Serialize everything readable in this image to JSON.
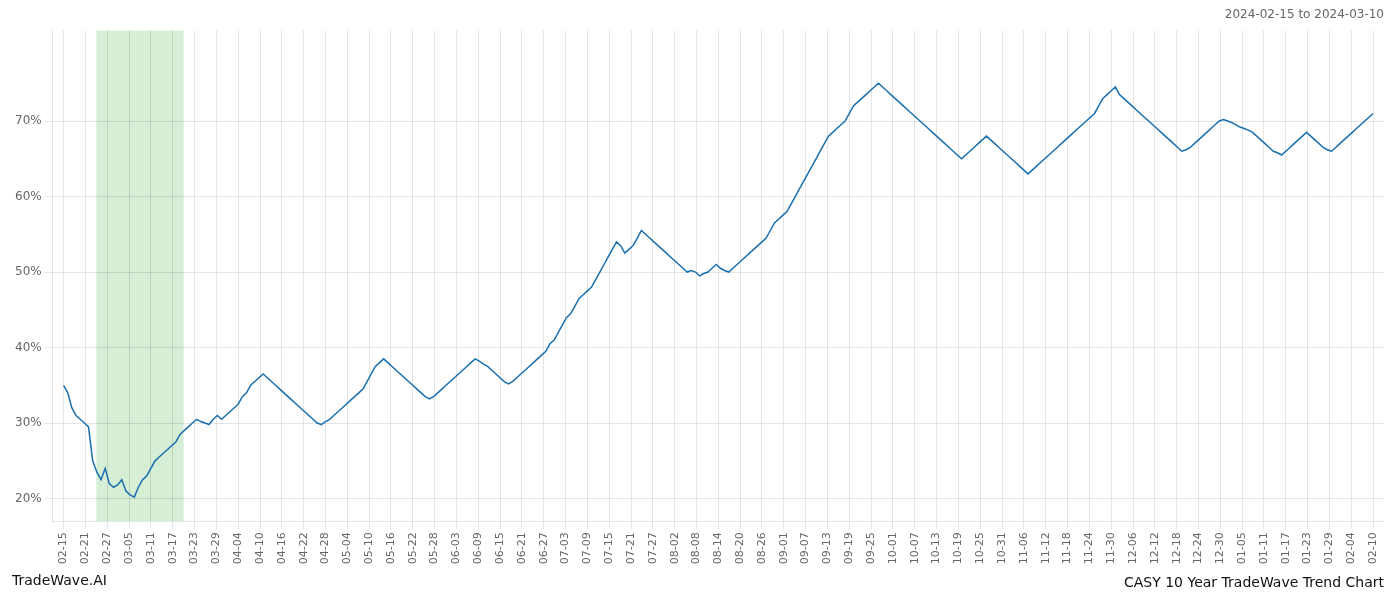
{
  "chart_data": {
    "type": "line",
    "title": "CASY 10 Year TradeWave Trend Chart",
    "subtitle": "2024-02-15 to 2024-03-10",
    "annotations": [
      "TradeWave.AI"
    ],
    "color": "#1a6faf",
    "grid": true,
    "highlight": {
      "xmin": 1.5,
      "xmax": 5.5,
      "color": "#d6eed6"
    },
    "xlim": [
      -0.5,
      60.5
    ],
    "xticks": [
      {
        "value": 0,
        "label": "02-15"
      },
      {
        "value": 1,
        "label": "02-21"
      },
      {
        "value": 2,
        "label": "02-27"
      },
      {
        "value": 3,
        "label": "03-05"
      },
      {
        "value": 4,
        "label": "03-11"
      },
      {
        "value": 5,
        "label": "03-17"
      },
      {
        "value": 6,
        "label": "03-23"
      },
      {
        "value": 7,
        "label": "03-29"
      },
      {
        "value": 8,
        "label": "04-04"
      },
      {
        "value": 9,
        "label": "04-10"
      },
      {
        "value": 10,
        "label": "04-16"
      },
      {
        "value": 11,
        "label": "04-22"
      },
      {
        "value": 12,
        "label": "04-28"
      },
      {
        "value": 13,
        "label": "05-04"
      },
      {
        "value": 14,
        "label": "05-10"
      },
      {
        "value": 15,
        "label": "05-16"
      },
      {
        "value": 16,
        "label": "05-22"
      },
      {
        "value": 17,
        "label": "05-28"
      },
      {
        "value": 18,
        "label": "06-03"
      },
      {
        "value": 19,
        "label": "06-09"
      },
      {
        "value": 20,
        "label": "06-15"
      },
      {
        "value": 21,
        "label": "06-21"
      },
      {
        "value": 22,
        "label": "06-27"
      },
      {
        "value": 23,
        "label": "07-03"
      },
      {
        "value": 24,
        "label": "07-09"
      },
      {
        "value": 25,
        "label": "07-15"
      },
      {
        "value": 26,
        "label": "07-21"
      },
      {
        "value": 27,
        "label": "07-27"
      },
      {
        "value": 28,
        "label": "08-02"
      },
      {
        "value": 29,
        "label": "08-08"
      },
      {
        "value": 30,
        "label": "08-14"
      },
      {
        "value": 31,
        "label": "08-20"
      },
      {
        "value": 32,
        "label": "08-26"
      },
      {
        "value": 33,
        "label": "09-01"
      },
      {
        "value": 34,
        "label": "09-07"
      },
      {
        "value": 35,
        "label": "09-13"
      },
      {
        "value": 36,
        "label": "09-19"
      },
      {
        "value": 37,
        "label": "09-25"
      },
      {
        "value": 38,
        "label": "10-01"
      },
      {
        "value": 39,
        "label": "10-07"
      },
      {
        "value": 40,
        "label": "10-13"
      },
      {
        "value": 41,
        "label": "10-19"
      },
      {
        "value": 42,
        "label": "10-25"
      },
      {
        "value": 43,
        "label": "10-31"
      },
      {
        "value": 44,
        "label": "11-06"
      },
      {
        "value": 45,
        "label": "11-12"
      },
      {
        "value": 46,
        "label": "11-18"
      },
      {
        "value": 47,
        "label": "11-24"
      },
      {
        "value": 48,
        "label": "11-30"
      },
      {
        "value": 49,
        "label": "12-06"
      },
      {
        "value": 50,
        "label": "12-12"
      },
      {
        "value": 51,
        "label": "12-18"
      },
      {
        "value": 52,
        "label": "12-24"
      },
      {
        "value": 53,
        "label": "12-30"
      },
      {
        "value": 54,
        "label": "01-05"
      },
      {
        "value": 55,
        "label": "01-11"
      },
      {
        "value": 56,
        "label": "01-17"
      },
      {
        "value": 57,
        "label": "01-23"
      },
      {
        "value": 58,
        "label": "01-29"
      },
      {
        "value": 59,
        "label": "02-04"
      },
      {
        "value": 60,
        "label": "02-10"
      }
    ],
    "ylim": [
      17,
      82
    ],
    "yticks": [
      {
        "value": 20,
        "label": "20%"
      },
      {
        "value": 30,
        "label": "30%"
      },
      {
        "value": 40,
        "label": "40%"
      },
      {
        "value": 50,
        "label": "50%"
      },
      {
        "value": 60,
        "label": "60%"
      },
      {
        "value": 70,
        "label": "70%"
      }
    ],
    "x": [
      0,
      0.1905,
      0.381,
      0.5714,
      0.7619,
      0.9524,
      1.1429,
      1.3333,
      1.5238,
      1.7143,
      1.9048,
      2.0952,
      2.2857,
      2.4762,
      2.6667,
      2.8571,
      3.0476,
      3.2381,
      3.4286,
      3.619,
      3.8095,
      4,
      4.1905,
      4.381,
      4.5714,
      4.7619,
      4.9524,
      5.1429,
      5.3333,
      5.5238,
      5.7143,
      5.9048,
      6.0952,
      6.2857,
      6.4762,
      6.6667,
      6.8571,
      7.0476,
      7.2381,
      7.4286,
      7.619,
      7.8095,
      8,
      8.1905,
      8.381,
      8.5714,
      8.7619,
      8.9524,
      9.1429,
      9.3333,
      9.5238,
      9.7143,
      9.9048,
      10.0952,
      10.2857,
      10.4762,
      10.6667,
      10.8571,
      11.0476,
      11.2381,
      11.4286,
      11.619,
      11.8095,
      12,
      12.1905,
      12.381,
      12.5714,
      12.7619,
      12.9524,
      13.1429,
      13.3333,
      13.5238,
      13.7143,
      13.9048,
      14.0952,
      14.2857,
      14.4762,
      14.6667,
      14.8571,
      15.0476,
      15.2381,
      15.4286,
      15.619,
      15.8095,
      16,
      16.1905,
      16.381,
      16.5714,
      16.7619,
      16.9524,
      17.1429,
      17.3333,
      17.5238,
      17.7143,
      17.9048,
      18.0952,
      18.2857,
      18.4762,
      18.6667,
      18.8571,
      19.0476,
      19.2381,
      19.4286,
      19.619,
      19.8095,
      20,
      20.1905,
      20.381,
      20.5714,
      20.7619,
      20.9524,
      21.1429,
      21.3333,
      21.5238,
      21.7143,
      21.9048,
      22.0952,
      22.2857,
      22.4762,
      22.6667,
      22.8571,
      23.0476,
      23.2381,
      23.4286,
      23.619,
      23.8095,
      24,
      24.1905,
      24.381,
      24.5714,
      24.7619,
      24.9524,
      25.1429,
      25.3333,
      25.5238,
      25.7143,
      25.9048,
      26.0952,
      26.2857,
      26.4762,
      26.6667,
      26.8571,
      27.0476,
      27.2381,
      27.4286,
      27.619,
      27.8095,
      28,
      28.1905,
      28.381,
      28.5714,
      28.7619,
      28.9524,
      29.1429,
      29.3333,
      29.5238,
      29.7143,
      29.9048,
      30.0952,
      30.2857,
      30.4762,
      30.6667,
      30.8571,
      31.0476,
      31.2381,
      31.4286,
      31.619,
      31.8095,
      32,
      32.1905,
      32.381,
      32.5714,
      32.7619,
      32.9524,
      33.1429,
      33.3333,
      33.5238,
      33.7143,
      33.9048,
      34.0952,
      34.2857,
      34.4762,
      34.6667,
      34.8571,
      35.0476,
      35.2381,
      35.4286,
      35.619,
      35.8095,
      36,
      36.1905,
      36.381,
      36.5714,
      36.7619,
      36.9524,
      37.1429,
      37.3333,
      37.5238,
      37.7143,
      37.9048,
      38.0952,
      38.2857,
      38.4762,
      38.6667,
      38.8571,
      39.0476,
      39.2381,
      39.4286,
      39.619,
      39.8095,
      40,
      40.1905,
      40.381,
      40.5714,
      40.7619,
      40.9524,
      41.1429,
      41.3333,
      41.5238,
      41.7143,
      41.9048,
      42.0952,
      42.2857,
      42.4762,
      42.6667,
      42.8571,
      43.0476,
      43.2381,
      43.4286,
      43.619,
      43.8095,
      44,
      44.1905,
      44.381,
      44.5714,
      44.7619,
      44.9524,
      45.1429,
      45.3333,
      45.5238,
      45.7143,
      45.9048,
      46.0952,
      46.2857,
      46.4762,
      46.6667,
      46.8571,
      47.0476,
      47.2381,
      47.4286,
      47.619,
      47.8095,
      48,
      48.1905,
      48.381,
      48.5714,
      48.7619,
      48.9524,
      49.1429,
      49.3333,
      49.5238,
      49.7143,
      49.9048,
      50.0952,
      50.2857,
      50.4762,
      50.6667,
      50.8571,
      51.0476,
      51.2381,
      51.4286,
      51.619,
      51.8095,
      52,
      52.1905,
      52.381,
      52.5714,
      52.7619,
      52.9524,
      53.1429,
      53.3333,
      53.5238,
      53.7143,
      53.9048,
      54.0952,
      54.2857,
      54.4762,
      54.6667,
      54.8571,
      55.0476,
      55.2381,
      55.4286,
      55.619,
      55.8095,
      56,
      56.1905,
      56.381,
      56.5714,
      56.7619,
      56.9524,
      57.1429,
      57.3333,
      57.5238,
      57.7143,
      57.9048,
      58.0952,
      58.2857,
      58.4762,
      58.6667,
      58.8571,
      59.0476,
      59.2381,
      59.4286,
      59.619,
      59.8095,
      60
    ],
    "values": [
      35.0,
      34.0,
      32.0,
      31.0,
      30.5,
      30.0,
      29.5,
      25.0,
      23.5,
      22.5,
      24.0,
      22.0,
      21.5,
      21.8,
      22.5,
      21.0,
      20.5,
      20.2,
      21.5,
      22.5,
      23.0,
      24.0,
      25.0,
      25.5,
      26.0,
      26.5,
      27.0,
      27.5,
      28.5,
      29.0,
      29.5,
      30.0,
      30.5,
      30.2,
      30.0,
      29.8,
      30.5,
      31.0,
      30.5,
      31.0,
      31.5,
      32.0,
      32.5,
      33.5,
      34.0,
      35.0,
      35.5,
      36.0,
      36.5,
      36.0,
      35.5,
      35.0,
      34.5,
      34.0,
      33.5,
      33.0,
      32.5,
      32.0,
      31.5,
      31.0,
      30.5,
      30.0,
      29.8,
      30.2,
      30.5,
      31.0,
      31.5,
      32.0,
      32.5,
      33.0,
      33.5,
      34.0,
      34.5,
      35.5,
      36.5,
      37.5,
      38.0,
      38.5,
      38.0,
      37.5,
      37.0,
      36.5,
      36.0,
      35.5,
      35.0,
      34.5,
      34.0,
      33.5,
      33.2,
      33.5,
      34.0,
      34.5,
      35.0,
      35.5,
      36.0,
      36.5,
      37.0,
      37.5,
      38.0,
      38.5,
      38.2,
      37.8,
      37.5,
      37.0,
      36.5,
      36.0,
      35.5,
      35.2,
      35.5,
      36.0,
      36.5,
      37.0,
      37.5,
      38.0,
      38.5,
      39.0,
      39.5,
      40.5,
      41.0,
      42.0,
      43.0,
      44.0,
      44.5,
      45.5,
      46.5,
      47.0,
      47.5,
      48.0,
      49.0,
      50.0,
      51.0,
      52.0,
      53.0,
      54.0,
      53.5,
      52.5,
      53.0,
      53.5,
      54.5,
      55.5,
      55.0,
      54.5,
      54.0,
      53.5,
      53.0,
      52.5,
      52.0,
      51.5,
      51.0,
      50.5,
      50.0,
      50.2,
      50.0,
      49.5,
      49.8,
      50.0,
      50.5,
      51.0,
      50.5,
      50.2,
      50.0,
      50.5,
      51.0,
      51.5,
      52.0,
      52.5,
      53.0,
      53.5,
      54.0,
      54.5,
      55.5,
      56.5,
      57.0,
      57.5,
      58.0,
      59.0,
      60.0,
      61.0,
      62.0,
      63.0,
      64.0,
      65.0,
      66.0,
      67.0,
      68.0,
      68.5,
      69.0,
      69.5,
      70.0,
      71.0,
      72.0,
      72.5,
      73.0,
      73.5,
      74.0,
      74.5,
      75.0,
      74.5,
      74.0,
      73.5,
      73.0,
      72.5,
      72.0,
      71.5,
      71.0,
      70.5,
      70.0,
      69.5,
      69.0,
      68.5,
      68.0,
      67.5,
      67.0,
      66.5,
      66.0,
      65.5,
      65.0,
      65.5,
      66.0,
      66.5,
      67.0,
      67.5,
      68.0,
      67.5,
      67.0,
      66.5,
      66.0,
      65.5,
      65.0,
      64.5,
      64.0,
      63.5,
      63.0,
      63.5,
      64.0,
      64.5,
      65.0,
      65.5,
      66.0,
      66.5,
      67.0,
      67.5,
      68.0,
      68.5,
      69.0,
      69.5,
      70.0,
      70.5,
      71.0,
      72.0,
      73.0,
      73.5,
      74.0,
      74.5,
      73.5,
      73.0,
      72.5,
      72.0,
      71.5,
      71.0,
      70.5,
      70.0,
      69.5,
      69.0,
      68.5,
      68.0,
      67.5,
      67.0,
      66.5,
      66.0,
      66.2,
      66.5,
      67.0,
      67.5,
      68.0,
      68.5,
      69.0,
      69.5,
      70.0,
      70.2,
      70.0,
      69.8,
      69.5,
      69.2,
      69.0,
      68.8,
      68.5,
      68.0,
      67.5,
      67.0,
      66.5,
      66.0,
      65.8,
      65.5,
      66.0,
      66.5,
      67.0,
      67.5,
      68.0,
      68.5,
      68.0,
      67.5,
      67.0,
      66.5,
      66.2,
      66.0,
      66.5,
      67.0,
      67.5,
      68.0,
      68.5,
      69.0,
      69.5,
      70.0,
      70.5,
      71.0
    ]
  }
}
